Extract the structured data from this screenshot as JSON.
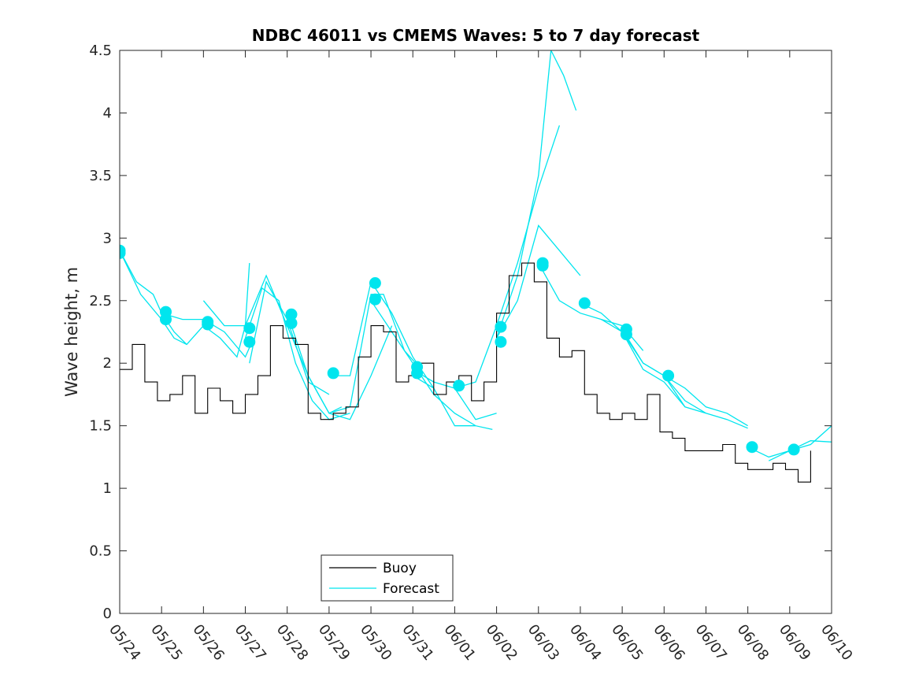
{
  "chart_data": {
    "type": "line",
    "title": "NDBC 46011 vs CMEMS Waves: 5 to 7 day forecast",
    "ylabel": "Wave height, m",
    "xlabel": "",
    "ylim": [
      0,
      4.5
    ],
    "yticks": [
      "0",
      "0.5",
      "1",
      "1.5",
      "2",
      "2.5",
      "3",
      "3.5",
      "4",
      "4.5"
    ],
    "xticks": [
      "05/24",
      "05/25",
      "05/26",
      "05/27",
      "05/28",
      "05/29",
      "05/30",
      "05/31",
      "06/01",
      "06/02",
      "06/03",
      "06/04",
      "06/05",
      "06/06",
      "06/07",
      "06/08",
      "06/09",
      "06/10"
    ],
    "grid": false,
    "legend_position": "bottom-center",
    "colors": {
      "buoy": "#000000",
      "forecast": "#00e5ee"
    },
    "series": [
      {
        "name": "Buoy",
        "x": [
          0.0,
          0.3,
          0.6,
          0.9,
          1.2,
          1.5,
          1.8,
          2.1,
          2.4,
          2.7,
          3.0,
          3.3,
          3.6,
          3.9,
          4.2,
          4.5,
          4.8,
          5.1,
          5.4,
          5.7,
          6.0,
          6.3,
          6.6,
          6.9,
          7.2,
          7.5,
          7.8,
          8.1,
          8.4,
          8.7,
          9.0,
          9.3,
          9.6,
          9.9,
          10.2,
          10.5,
          10.8,
          11.1,
          11.4,
          11.7,
          12.0,
          12.3,
          12.6,
          12.9,
          13.2,
          13.5,
          13.8,
          14.1,
          14.4,
          14.7,
          15.0,
          15.3,
          15.6,
          15.9,
          16.2,
          16.5
        ],
        "values": [
          1.95,
          2.15,
          1.85,
          1.7,
          1.75,
          1.9,
          1.6,
          1.8,
          1.7,
          1.6,
          1.75,
          1.9,
          2.3,
          2.2,
          2.15,
          1.6,
          1.55,
          1.6,
          1.65,
          2.05,
          2.3,
          2.25,
          1.85,
          1.9,
          2.0,
          1.75,
          1.85,
          1.9,
          1.7,
          1.85,
          2.4,
          2.7,
          2.8,
          2.65,
          2.2,
          2.05,
          2.1,
          1.75,
          1.6,
          1.55,
          1.6,
          1.55,
          1.75,
          1.45,
          1.4,
          1.3,
          1.3,
          1.3,
          1.35,
          1.2,
          1.15,
          1.15,
          1.2,
          1.15,
          1.05,
          1.3
        ]
      },
      {
        "name": "Forecast",
        "segments": [
          {
            "x": [
              0.0,
              0.5,
              1.0,
              1.3,
              1.6,
              2.0
            ],
            "values": [
              2.9,
              2.55,
              2.35,
              2.2,
              2.15,
              2.3
            ]
          },
          {
            "x": [
              0.0,
              0.4,
              0.8,
              1.0,
              1.3,
              1.6
            ],
            "values": [
              2.9,
              2.65,
              2.55,
              2.4,
              2.25,
              2.15
            ]
          },
          {
            "x": [
              1.0,
              1.5,
              2.0,
              2.5,
              3.0,
              3.2
            ],
            "values": [
              2.4,
              2.35,
              2.35,
              2.25,
              2.05,
              2.2
            ]
          },
          {
            "x": [
              2.0,
              2.4,
              2.8,
              3.0,
              3.1
            ],
            "values": [
              2.3,
              2.2,
              2.05,
              2.3,
              2.8
            ]
          },
          {
            "x": [
              2.0,
              2.5,
              2.9,
              3.0
            ],
            "values": [
              2.5,
              2.3,
              2.3,
              2.3
            ]
          },
          {
            "x": [
              3.0,
              3.5,
              4.0,
              4.5,
              5.0,
              5.3
            ],
            "values": [
              2.3,
              2.7,
              2.3,
              1.9,
              1.6,
              1.65
            ]
          },
          {
            "x": [
              3.0,
              3.4,
              3.8,
              4.2,
              4.6,
              5.0,
              5.5
            ],
            "values": [
              2.2,
              2.6,
              2.5,
              2.0,
              1.7,
              1.55,
              1.6
            ]
          },
          {
            "x": [
              3.1,
              3.5,
              4.0,
              4.5,
              5.0
            ],
            "values": [
              2.0,
              2.65,
              2.35,
              1.85,
              1.75
            ]
          },
          {
            "x": [
              4.0,
              4.5,
              5.0,
              5.5,
              6.0,
              6.5
            ],
            "values": [
              2.4,
              1.9,
              1.6,
              1.55,
              1.9,
              2.3
            ]
          },
          {
            "x": [
              5.0,
              5.5,
              6.0,
              6.5,
              7.0,
              7.5
            ],
            "values": [
              1.9,
              1.9,
              2.65,
              2.4,
              2.05,
              1.8
            ]
          },
          {
            "x": [
              5.0,
              5.5,
              6.0,
              6.3,
              6.8,
              7.2
            ],
            "values": [
              1.6,
              1.65,
              2.55,
              2.55,
              2.1,
              1.95
            ]
          },
          {
            "x": [
              6.0,
              6.5,
              7.0,
              7.5,
              8.0,
              8.5,
              8.9
            ],
            "values": [
              2.5,
              2.25,
              2.0,
              1.75,
              1.6,
              1.5,
              1.47
            ]
          },
          {
            "x": [
              7.0,
              7.5,
              8.0,
              8.5,
              9.0
            ],
            "values": [
              1.95,
              1.85,
              1.8,
              1.55,
              1.6
            ]
          },
          {
            "x": [
              7.0,
              7.5,
              8.0,
              8.5
            ],
            "values": [
              1.9,
              1.8,
              1.5,
              1.5
            ]
          },
          {
            "x": [
              8.0,
              8.5,
              9.0,
              9.5,
              10.0,
              10.5
            ],
            "values": [
              1.8,
              1.85,
              2.3,
              2.8,
              3.4,
              3.9
            ]
          },
          {
            "x": [
              9.0,
              9.5,
              10.0,
              10.3,
              10.6,
              10.9
            ],
            "values": [
              2.2,
              2.7,
              3.5,
              4.5,
              4.3,
              4.02
            ]
          },
          {
            "x": [
              9.0,
              9.5,
              10.0,
              10.5,
              11.0
            ],
            "values": [
              2.2,
              2.5,
              3.1,
              2.9,
              2.7
            ]
          },
          {
            "x": [
              10.0,
              10.5,
              11.0,
              11.5,
              12.0,
              12.5
            ],
            "values": [
              2.8,
              2.5,
              2.4,
              2.35,
              2.3,
              2.1
            ]
          },
          {
            "x": [
              11.0,
              11.5,
              12.0,
              12.5,
              13.0,
              13.5
            ],
            "values": [
              2.48,
              2.4,
              2.25,
              2.0,
              1.9,
              1.65
            ]
          },
          {
            "x": [
              11.5,
              12.0,
              12.5,
              13.0,
              13.5,
              14.0
            ],
            "values": [
              2.35,
              2.25,
              1.95,
              1.85,
              1.65,
              1.6
            ]
          },
          {
            "x": [
              12.0,
              12.5,
              13.0,
              13.5,
              14.0,
              14.5,
              15.0
            ],
            "values": [
              2.27,
              2.0,
              1.9,
              1.7,
              1.6,
              1.55,
              1.48
            ]
          },
          {
            "x": [
              13.0,
              13.5,
              14.0,
              14.5,
              15.0
            ],
            "values": [
              1.9,
              1.8,
              1.65,
              1.6,
              1.5
            ]
          },
          {
            "x": [
              15.0,
              15.5,
              16.0,
              16.5,
              17.0
            ],
            "values": [
              1.33,
              1.25,
              1.3,
              1.35,
              1.5
            ]
          },
          {
            "x": [
              15.5,
              16.0,
              16.5,
              17.0
            ],
            "values": [
              1.22,
              1.3,
              1.38,
              1.37
            ]
          }
        ],
        "markers": {
          "x": [
            0.0,
            0.0,
            1.1,
            1.1,
            2.1,
            2.1,
            3.1,
            3.1,
            4.1,
            4.1,
            5.1,
            6.1,
            6.1,
            7.1,
            7.1,
            8.1,
            9.1,
            9.1,
            10.1,
            10.1,
            11.1,
            12.1,
            12.1,
            13.1,
            15.1,
            16.1
          ],
          "values": [
            2.9,
            2.88,
            2.41,
            2.35,
            2.33,
            2.31,
            2.28,
            2.17,
            2.39,
            2.32,
            1.92,
            2.64,
            2.51,
            1.97,
            1.92,
            1.82,
            2.29,
            2.17,
            2.8,
            2.78,
            2.48,
            2.27,
            2.23,
            1.9,
            1.33,
            1.31
          ]
        }
      }
    ]
  },
  "legend": {
    "buoy_label": "Buoy",
    "forecast_label": "Forecast"
  }
}
